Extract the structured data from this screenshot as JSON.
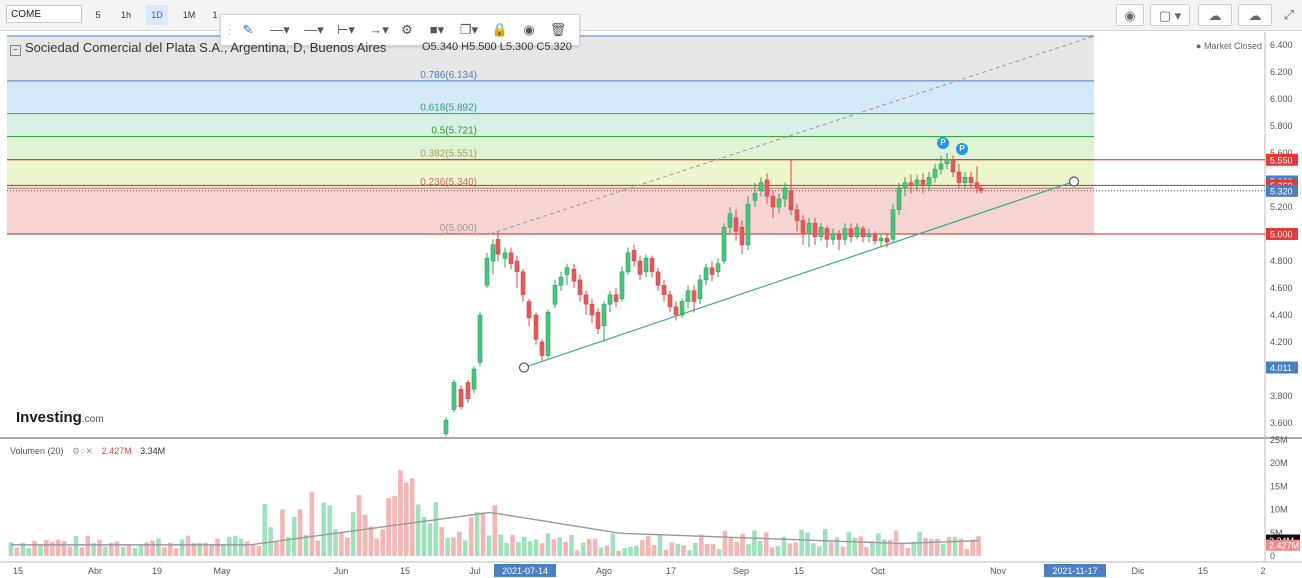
{
  "toolbar": {
    "symbol": "COME",
    "timeframes": [
      "5",
      "1h",
      "1D",
      "1M",
      "1"
    ],
    "active_timeframe": "1D",
    "draw_tools": [
      "pencil-icon",
      "line-style-icon",
      "line-width-icon",
      "line-end-icon",
      "arrow-icon",
      "gear-icon",
      "fill-color-icon",
      "clone-icon",
      "lock-icon",
      "eye-icon",
      "trash-icon"
    ],
    "right_tools": [
      "camera-icon",
      "layout-icon",
      "cloud-download-icon",
      "cloud-upload-icon",
      "fullscreen-icon"
    ]
  },
  "header": {
    "title": "Sociedad Comercial del Plata S.A., Argentina, D, Buenos Aires",
    "open": "O5.340",
    "high": "H5.500",
    "low": "L5.300",
    "close": "C5.320",
    "status": "Market Closed"
  },
  "volume": {
    "label": "Volumen (20)",
    "value1": "2.427M",
    "value2": "3.34M",
    "axis": [
      "25M",
      "20M",
      "15M",
      "10M",
      "5M",
      "0"
    ],
    "badge_ma": "3.34M",
    "badge_vol": "2.427M"
  },
  "logo": {
    "main": "Investing",
    "suffix": ".com"
  },
  "fib_levels": [
    {
      "label": "0.786(6.134)",
      "price": 6.134
    },
    {
      "label": "0.618(5.892)",
      "price": 5.892
    },
    {
      "label": "0.5(5.721)",
      "price": 5.721
    },
    {
      "label": "0.382(5.551)",
      "price": 5.551
    },
    {
      "label": "0.236(5.340)",
      "price": 5.34
    },
    {
      "label": "0(5.000)",
      "price": 5.0
    }
  ],
  "price_axis": [
    "6.400",
    "6.200",
    "6.000",
    "5.800",
    "5.600",
    "5.400",
    "5.200",
    "5.000",
    "4.800",
    "4.600",
    "4.400",
    "4.200",
    "4.000",
    "3.800",
    "3.600"
  ],
  "price_badges": [
    {
      "label": "5.550",
      "price": 5.55,
      "bg": "#e53935",
      "fg": "#ffffff"
    },
    {
      "label": "5.389",
      "price": 5.389,
      "bg": "#4a7fc1",
      "fg": "#ffffff"
    },
    {
      "label": "5.360",
      "price": 5.36,
      "bg": "#e53935",
      "fg": "#ffffff"
    },
    {
      "label": "5.320",
      "price": 5.32,
      "bg": "#4a7fc1",
      "fg": "#ffffff"
    },
    {
      "label": "5.000",
      "price": 5.0,
      "bg": "#e53935",
      "fg": "#ffffff"
    },
    {
      "label": "4.011",
      "price": 4.011,
      "bg": "#4a7fc1",
      "fg": "#ffffff"
    }
  ],
  "time_axis": [
    "15",
    "Abr",
    "19",
    "May",
    "Jun",
    "15",
    "Jul",
    "2021-07-14",
    "Ago",
    "17",
    "Sep",
    "15",
    "Oct",
    "Nov",
    "2021-11-17",
    "Dic",
    "15",
    "2"
  ],
  "time_axis_highlight": [
    "2021-07-14",
    "2021-11-17"
  ],
  "p_markers": [
    "P",
    "P"
  ],
  "colors": {
    "up": "#26a65b",
    "down": "#e04646",
    "vol_up": "#9fe0bf",
    "vol_down": "#f5b5b5",
    "trend": "#3aaa8a",
    "hline": "#d62020",
    "fib_lines": "#4a7fc1"
  },
  "hlines": [
    5.55,
    5.36,
    5.0
  ],
  "last_price": 5.32
}
